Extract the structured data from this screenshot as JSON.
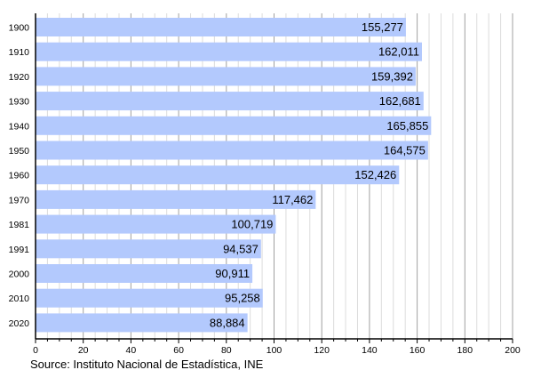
{
  "chart_data": {
    "type": "bar",
    "orientation": "horizontal",
    "categories": [
      "1900",
      "1910",
      "1920",
      "1930",
      "1940",
      "1950",
      "1960",
      "1970",
      "1981",
      "1991",
      "2000",
      "2010",
      "2020"
    ],
    "values": [
      155277,
      162011,
      159392,
      162681,
      165855,
      164575,
      152426,
      117462,
      100719,
      94537,
      90911,
      95258,
      88884
    ],
    "value_labels": [
      "155,277",
      "162,011",
      "159,392",
      "162,681",
      "165,855",
      "164,575",
      "152,426",
      "117,462",
      "100,719",
      "94,537",
      "90,911",
      "95,258",
      "88,884"
    ],
    "x_ticks": [
      "0",
      "20",
      "40",
      "60",
      "80",
      "100",
      "120",
      "140",
      "160",
      "180",
      "200"
    ],
    "xlim": [
      0,
      200
    ],
    "x_unit": "thousands",
    "grid": true,
    "bar_color": "#b3c9fd",
    "source": "Source: Instituto Nacional de Estadística, INE"
  }
}
